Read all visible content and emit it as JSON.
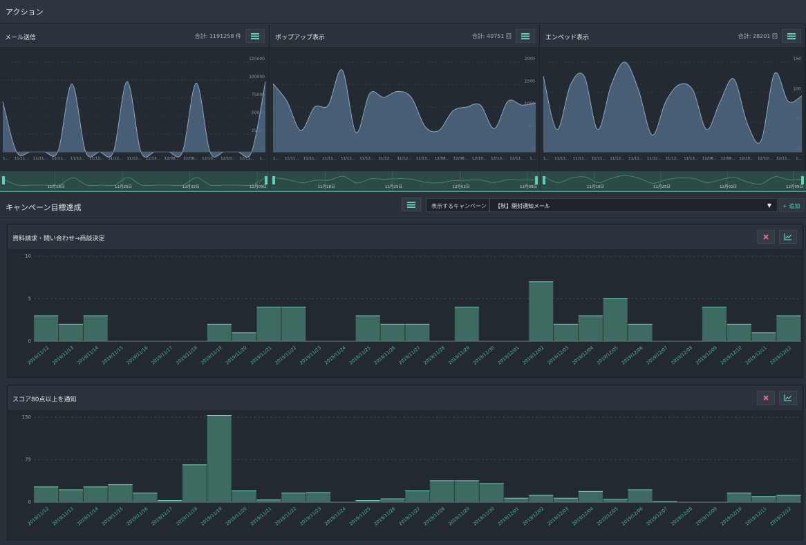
{
  "header": {
    "title": "アクション"
  },
  "action_panels": [
    {
      "title": "メール送信",
      "total": "合計: 1191258 件",
      "y_ticks": [
        "125000",
        "100000",
        "75000",
        "50000",
        "25000",
        "0"
      ],
      "ymax": 125000,
      "values": [
        70000,
        0,
        0,
        0,
        1200,
        95000,
        0,
        0,
        0,
        98000,
        0,
        0,
        0,
        0,
        96000,
        0,
        0,
        0,
        0,
        98000
      ],
      "x_labels": [
        "1...",
        "11/11...",
        "11/11...",
        "11/11...",
        "11/12...",
        "11/12...",
        "11/12...",
        "11/12...",
        "11/13...",
        "12/08...",
        "12/08...",
        "12/10...",
        "12/10...",
        "12/11...",
        "1..."
      ],
      "nav_dates": [
        "11月18日",
        "11月25日",
        "12月02日",
        "12月09日"
      ],
      "accent": "#4e6781"
    },
    {
      "title": "ポップアップ表示",
      "total": "合計: 40751 回",
      "y_ticks": [
        "2000",
        "1500",
        "1000",
        "500",
        "0"
      ],
      "ymax": 2300,
      "values": [
        1750,
        1300,
        550,
        1150,
        1200,
        2100,
        500,
        1500,
        1400,
        1550,
        1400,
        650,
        550,
        1050,
        1150,
        1200,
        600,
        1300,
        1200,
        1250
      ],
      "x_labels": [
        "1...",
        "11/11...",
        "11/11...",
        "11/11...",
        "11/12...",
        "11/12...",
        "11/12...",
        "11/12...",
        "11/13...",
        "12/08...",
        "12/08...",
        "12/10...",
        "12/10...",
        "12/11...",
        "1..."
      ],
      "nav_dates": [
        "11月18日",
        "11月25日",
        "12月02日",
        "12月09日"
      ],
      "accent": "#4e6781"
    },
    {
      "title": "エンベッド表示",
      "total": "合計: 28201 回",
      "y_ticks": [
        "150",
        "100",
        "50",
        "0"
      ],
      "ymax": 160,
      "values": [
        135,
        40,
        120,
        135,
        40,
        120,
        160,
        110,
        30,
        90,
        120,
        110,
        40,
        90,
        130,
        50,
        20,
        140,
        90,
        100
      ],
      "x_labels": [
        "1...",
        "11/11...",
        "11/11...",
        "11/11...",
        "11/12...",
        "11/12...",
        "11/12...",
        "11/12...",
        "11/13...",
        "12/08...",
        "12/08...",
        "12/10...",
        "12/10...",
        "12/11...",
        "1..."
      ],
      "nav_dates": [
        "11月18日",
        "11月25日",
        "12月02日",
        "12月09日"
      ],
      "accent": "#4e6781"
    }
  ],
  "campaign": {
    "title": "キャンペーン目標達成",
    "label": "表示するキャンペーン",
    "selected": "【秋】開封通知メール",
    "caret": "▼",
    "add_label": "+ 追加"
  },
  "chart_data": [
    {
      "type": "bar",
      "title": "資料請求・問い合わせ→商談決定",
      "y_ticks": [
        "10",
        "5",
        "0"
      ],
      "ylim": [
        0,
        10
      ],
      "categories": [
        "2019/11/12",
        "2019/11/13",
        "2019/11/14",
        "2019/11/15",
        "2019/11/16",
        "2019/11/17",
        "2019/11/18",
        "2019/11/19",
        "2019/11/20",
        "2019/11/21",
        "2019/11/22",
        "2019/11/23",
        "2019/11/24",
        "2019/11/25",
        "2019/11/26",
        "2019/11/27",
        "2019/11/28",
        "2019/11/29",
        "2019/11/30",
        "2019/12/01",
        "2019/12/02",
        "2019/12/03",
        "2019/12/04",
        "2019/12/05",
        "2019/12/06",
        "2019/12/07",
        "2019/12/08",
        "2019/12/09",
        "2019/12/10",
        "2019/12/11",
        "2019/12/12"
      ],
      "values": [
        3,
        2,
        3,
        0,
        0,
        0,
        0,
        2,
        1,
        4,
        4,
        0,
        0,
        3,
        2,
        2,
        0,
        4,
        0,
        0,
        7,
        2,
        3,
        5,
        2,
        0,
        0,
        4,
        2,
        1,
        3
      ],
      "bar_color": "#3d6b61"
    },
    {
      "type": "bar",
      "title": "スコア80点以上を通知",
      "y_ticks": [
        "150",
        "75",
        "0"
      ],
      "ylim": [
        0,
        150
      ],
      "categories": [
        "2019/11/12",
        "2019/11/13",
        "2019/11/14",
        "2019/11/15",
        "2019/11/16",
        "2019/11/17",
        "2019/11/18",
        "2019/11/19",
        "2019/11/20",
        "2019/11/21",
        "2019/11/22",
        "2019/11/23",
        "2019/11/24",
        "2019/11/25",
        "2019/11/26",
        "2019/11/27",
        "2019/11/28",
        "2019/11/29",
        "2019/11/30",
        "2019/12/01",
        "2019/12/02",
        "2019/12/03",
        "2019/12/04",
        "2019/12/05",
        "2019/12/06",
        "2019/12/07",
        "2019/12/08",
        "2019/12/09",
        "2019/12/10",
        "2019/12/11",
        "2019/12/12"
      ],
      "values": [
        27,
        22,
        27,
        31,
        16,
        3,
        66,
        153,
        20,
        4,
        16,
        17,
        0,
        3,
        6,
        20,
        38,
        38,
        33,
        7,
        12,
        7,
        19,
        5,
        22,
        1,
        0,
        0,
        16,
        10,
        12
      ],
      "bar_color": "#3d6b61"
    }
  ]
}
